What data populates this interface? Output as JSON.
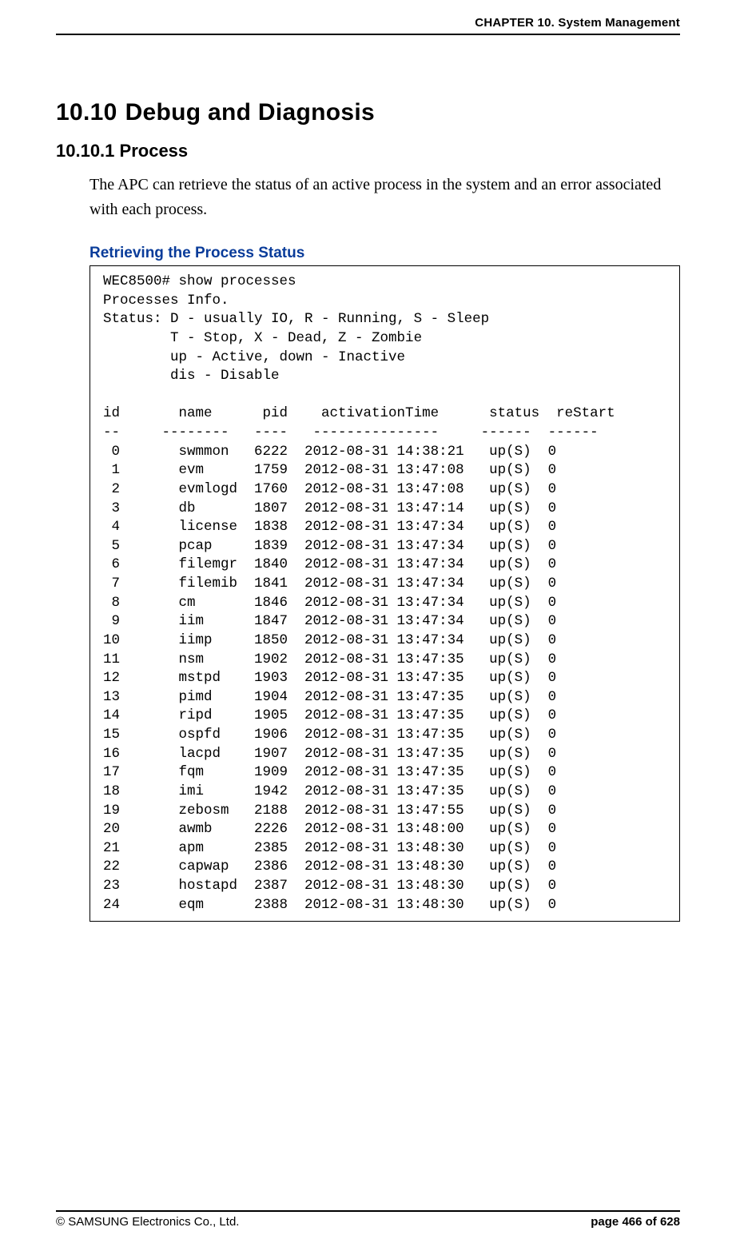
{
  "header": {
    "chapter": "CHAPTER 10. System Management"
  },
  "section": {
    "number": "10.10",
    "title": "Debug and Diagnosis"
  },
  "subsection": {
    "number": "10.10.1",
    "title": "Process"
  },
  "paragraph": "The APC can retrieve the status of an active process in the system and an error associated with each process.",
  "sub_heading": "Retrieving the Process Status",
  "terminal": {
    "prompt": "WEC8500# show processes",
    "info_line": "Processes Info.",
    "status_lines": [
      "Status: D - usually IO, R - Running, S - Sleep",
      "        T - Stop, X - Dead, Z - Zombie",
      "        up - Active, down - Inactive",
      "        dis - Disable"
    ],
    "columns_header": "id       name      pid    activationTime      status  reStart",
    "columns_sep": "--     --------   ----   ---------------     ------  ------",
    "rows": [
      {
        "id": " 0",
        "name": "swmmon  ",
        "pid": "6222",
        "time": "2012-08-31 14:38:21",
        "status": "up(S)",
        "restart": "0"
      },
      {
        "id": " 1",
        "name": "evm     ",
        "pid": "1759",
        "time": "2012-08-31 13:47:08",
        "status": "up(S)",
        "restart": "0"
      },
      {
        "id": " 2",
        "name": "evmlogd ",
        "pid": "1760",
        "time": "2012-08-31 13:47:08",
        "status": "up(S)",
        "restart": "0"
      },
      {
        "id": " 3",
        "name": "db      ",
        "pid": "1807",
        "time": "2012-08-31 13:47:14",
        "status": "up(S)",
        "restart": "0"
      },
      {
        "id": " 4",
        "name": "license ",
        "pid": "1838",
        "time": "2012-08-31 13:47:34",
        "status": "up(S)",
        "restart": "0"
      },
      {
        "id": " 5",
        "name": "pcap    ",
        "pid": "1839",
        "time": "2012-08-31 13:47:34",
        "status": "up(S)",
        "restart": "0"
      },
      {
        "id": " 6",
        "name": "filemgr ",
        "pid": "1840",
        "time": "2012-08-31 13:47:34",
        "status": "up(S)",
        "restart": "0"
      },
      {
        "id": " 7",
        "name": "filemib ",
        "pid": "1841",
        "time": "2012-08-31 13:47:34",
        "status": "up(S)",
        "restart": "0"
      },
      {
        "id": " 8",
        "name": "cm      ",
        "pid": "1846",
        "time": "2012-08-31 13:47:34",
        "status": "up(S)",
        "restart": "0"
      },
      {
        "id": " 9",
        "name": "iim     ",
        "pid": "1847",
        "time": "2012-08-31 13:47:34",
        "status": "up(S)",
        "restart": "0"
      },
      {
        "id": "10",
        "name": "iimp    ",
        "pid": "1850",
        "time": "2012-08-31 13:47:34",
        "status": "up(S)",
        "restart": "0"
      },
      {
        "id": "11",
        "name": "nsm     ",
        "pid": "1902",
        "time": "2012-08-31 13:47:35",
        "status": "up(S)",
        "restart": "0"
      },
      {
        "id": "12",
        "name": "mstpd   ",
        "pid": "1903",
        "time": "2012-08-31 13:47:35",
        "status": "up(S)",
        "restart": "0"
      },
      {
        "id": "13",
        "name": "pimd    ",
        "pid": "1904",
        "time": "2012-08-31 13:47:35",
        "status": "up(S)",
        "restart": "0"
      },
      {
        "id": "14",
        "name": "ripd    ",
        "pid": "1905",
        "time": "2012-08-31 13:47:35",
        "status": "up(S)",
        "restart": "0"
      },
      {
        "id": "15",
        "name": "ospfd   ",
        "pid": "1906",
        "time": "2012-08-31 13:47:35",
        "status": "up(S)",
        "restart": "0"
      },
      {
        "id": "16",
        "name": "lacpd   ",
        "pid": "1907",
        "time": "2012-08-31 13:47:35",
        "status": "up(S)",
        "restart": "0"
      },
      {
        "id": "17",
        "name": "fqm     ",
        "pid": "1909",
        "time": "2012-08-31 13:47:35",
        "status": "up(S)",
        "restart": "0"
      },
      {
        "id": "18",
        "name": "imi     ",
        "pid": "1942",
        "time": "2012-08-31 13:47:35",
        "status": "up(S)",
        "restart": "0"
      },
      {
        "id": "19",
        "name": "zebosm  ",
        "pid": "2188",
        "time": "2012-08-31 13:47:55",
        "status": "up(S)",
        "restart": "0"
      },
      {
        "id": "20",
        "name": "awmb    ",
        "pid": "2226",
        "time": "2012-08-31 13:48:00",
        "status": "up(S)",
        "restart": "0"
      },
      {
        "id": "21",
        "name": "apm     ",
        "pid": "2385",
        "time": "2012-08-31 13:48:30",
        "status": "up(S)",
        "restart": "0"
      },
      {
        "id": "22",
        "name": "capwap  ",
        "pid": "2386",
        "time": "2012-08-31 13:48:30",
        "status": "up(S)",
        "restart": "0"
      },
      {
        "id": "23",
        "name": "hostapd ",
        "pid": "2387",
        "time": "2012-08-31 13:48:30",
        "status": "up(S)",
        "restart": "0"
      },
      {
        "id": "24",
        "name": "eqm     ",
        "pid": "2388",
        "time": "2012-08-31 13:48:30",
        "status": "up(S)",
        "restart": "0"
      }
    ]
  },
  "footer": {
    "copyright": "© SAMSUNG Electronics Co., Ltd.",
    "page": "page 466 of 628"
  },
  "colors": {
    "text": "#000000",
    "heading_blue": "#0a3c9a",
    "background": "#ffffff"
  }
}
